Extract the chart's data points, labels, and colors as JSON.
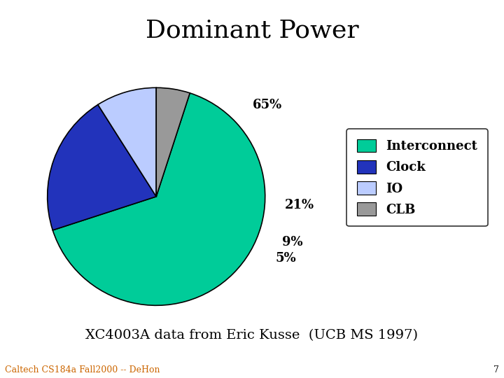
{
  "title": "Dominant Power",
  "subtitle": "XC4003A data from Eric Kusse  (UCB MS 1997)",
  "footer": "Caltech CS184a Fall2000 -- DeHon",
  "footer_page": "7",
  "slices": [
    65,
    21,
    9,
    5
  ],
  "labels": [
    "65%",
    "21%",
    "9%",
    "5%"
  ],
  "legend_labels": [
    "Interconnect",
    "Clock",
    "IO",
    "CLB"
  ],
  "colors": [
    "#00CC99",
    "#2233BB",
    "#BBCCFF",
    "#999999"
  ],
  "startangle": 72,
  "background_color": "#FFFFFF",
  "title_fontsize": 26,
  "subtitle_fontsize": 14,
  "footer_fontsize": 9,
  "label_fontsize": 13,
  "legend_fontsize": 13
}
